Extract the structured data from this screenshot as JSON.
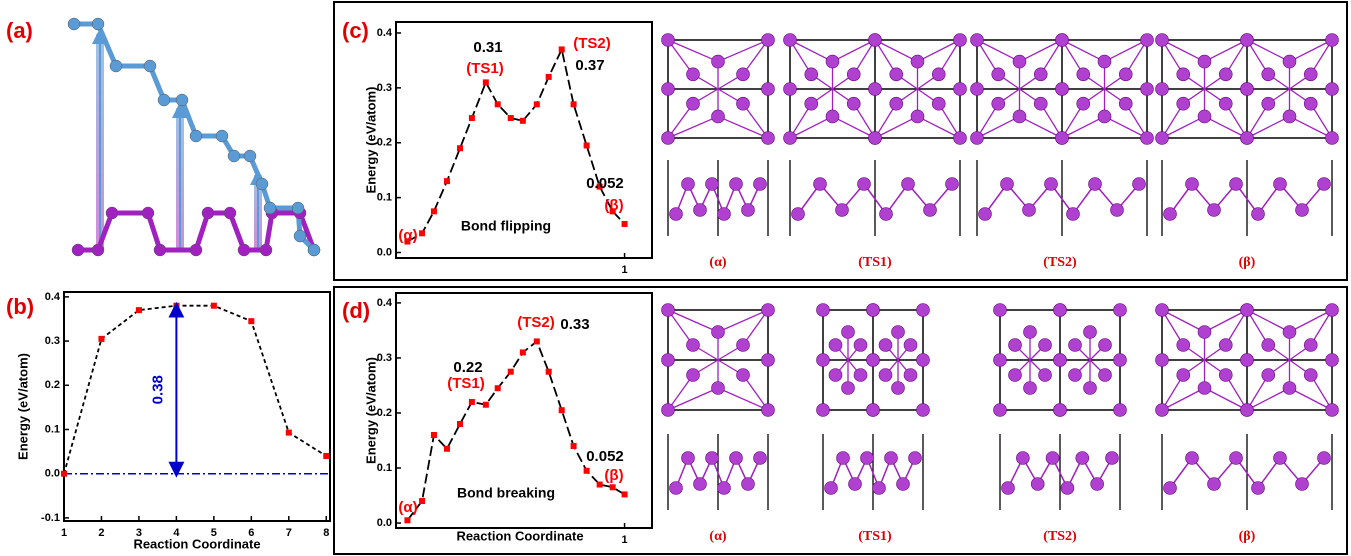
{
  "panel_labels": [
    "(a)",
    "(b)",
    "(c)",
    "(d)"
  ],
  "chart_data": [
    {
      "type": "line",
      "x_label": "Reaction Coordinate",
      "y_label": "Energy (eV/atom)",
      "x": [
        1,
        2,
        3,
        4,
        5,
        6,
        7,
        8
      ],
      "values": [
        0.0,
        0.305,
        0.37,
        0.38,
        0.38,
        0.345,
        0.093,
        0.04
      ],
      "xlim": [
        1,
        8.1
      ],
      "xticks": [
        1,
        2,
        3,
        4,
        5,
        6,
        7,
        8
      ],
      "ylim": [
        -0.107,
        0.411
      ],
      "yticks": [
        -0.1,
        {
          "value": 0,
          "label": "0.0"
        },
        0.1,
        0.2,
        0.3,
        0.4
      ],
      "marker_color": "#ff0000",
      "line_color": "#000000",
      "line_style": "dashed",
      "reference_line": {
        "value": 0,
        "color": "#0000cc"
      },
      "arrow": {
        "x": 4,
        "from": 0,
        "to": 0.38,
        "label": "0.38",
        "color": "#0000cc"
      }
    },
    {
      "type": "line",
      "y_label": "Energy (eV/atom)",
      "x": [
        0.05,
        0.114,
        0.166,
        0.223,
        0.28,
        0.332,
        0.393,
        0.445,
        0.502,
        0.555,
        0.616,
        0.668,
        0.725,
        0.777,
        0.834,
        0.891,
        0.948,
        1.0
      ],
      "values": [
        0.02,
        0.035,
        0.075,
        0.13,
        0.19,
        0.245,
        0.31,
        0.27,
        0.245,
        0.24,
        0.27,
        0.32,
        0.37,
        0.27,
        0.195,
        0.12,
        0.075,
        0.052
      ],
      "xlim": [
        0,
        1.12
      ],
      "xticks": [
        1
      ],
      "ylim": [
        -0.01,
        0.42
      ],
      "yticks": [
        {
          "value": 0,
          "label": "0.0"
        },
        0.1,
        0.2,
        0.3,
        0.4
      ],
      "marker_color": "#ff0000",
      "line_color": "#000000",
      "line_style": "dashed",
      "annotations": [
        {
          "text": "0.31",
          "color": "#000000"
        },
        {
          "text": "(TS1)",
          "color": "#ff0000"
        },
        {
          "text": "(TS2)",
          "color": "#ff0000"
        },
        {
          "text": "0.37",
          "color": "#000000"
        },
        {
          "text": "0.052",
          "color": "#000000"
        },
        {
          "text": "(β)",
          "color": "#ff0000"
        },
        {
          "text": "(α)",
          "color": "#ff0000"
        },
        {
          "text": "Bond flipping",
          "color": "#000000"
        }
      ],
      "structure_labels": [
        "(α)",
        "(TS1)",
        "(TS2)",
        "(β)"
      ]
    },
    {
      "type": "line",
      "x_label": "Reaction Coordinate",
      "y_label": "Energy (eV/atom)",
      "x": [
        0.05,
        0.114,
        0.166,
        0.223,
        0.28,
        0.332,
        0.393,
        0.445,
        0.502,
        0.555,
        0.616,
        0.668,
        0.725,
        0.777,
        0.834,
        0.891,
        0.948,
        1.0
      ],
      "values": [
        0.005,
        0.04,
        0.16,
        0.135,
        0.18,
        0.22,
        0.215,
        0.245,
        0.275,
        0.31,
        0.33,
        0.275,
        0.205,
        0.14,
        0.095,
        0.07,
        0.065,
        0.052
      ],
      "xlim": [
        0,
        1.12
      ],
      "xticks": [
        1
      ],
      "ylim": [
        -0.009,
        0.418
      ],
      "yticks": [
        {
          "value": 0,
          "label": "0.0"
        },
        0.1,
        0.2,
        0.3,
        0.4
      ],
      "marker_color": "#ff0000",
      "line_color": "#000000",
      "line_style": "dashed",
      "annotations": [
        {
          "text": "(TS2)",
          "color": "#ff0000"
        },
        {
          "text": "0.33",
          "color": "#000000"
        },
        {
          "text": "0.22",
          "color": "#000000"
        },
        {
          "text": "(TS1)",
          "color": "#ff0000"
        },
        {
          "text": "0.052",
          "color": "#000000"
        },
        {
          "text": "(β)",
          "color": "#ff0000"
        },
        {
          "text": "(α)",
          "color": "#ff0000"
        },
        {
          "text": "Bond breaking",
          "color": "#000000"
        }
      ],
      "structure_labels": [
        "(α)",
        "(TS1)",
        "(TS2)",
        "(β)"
      ]
    }
  ]
}
